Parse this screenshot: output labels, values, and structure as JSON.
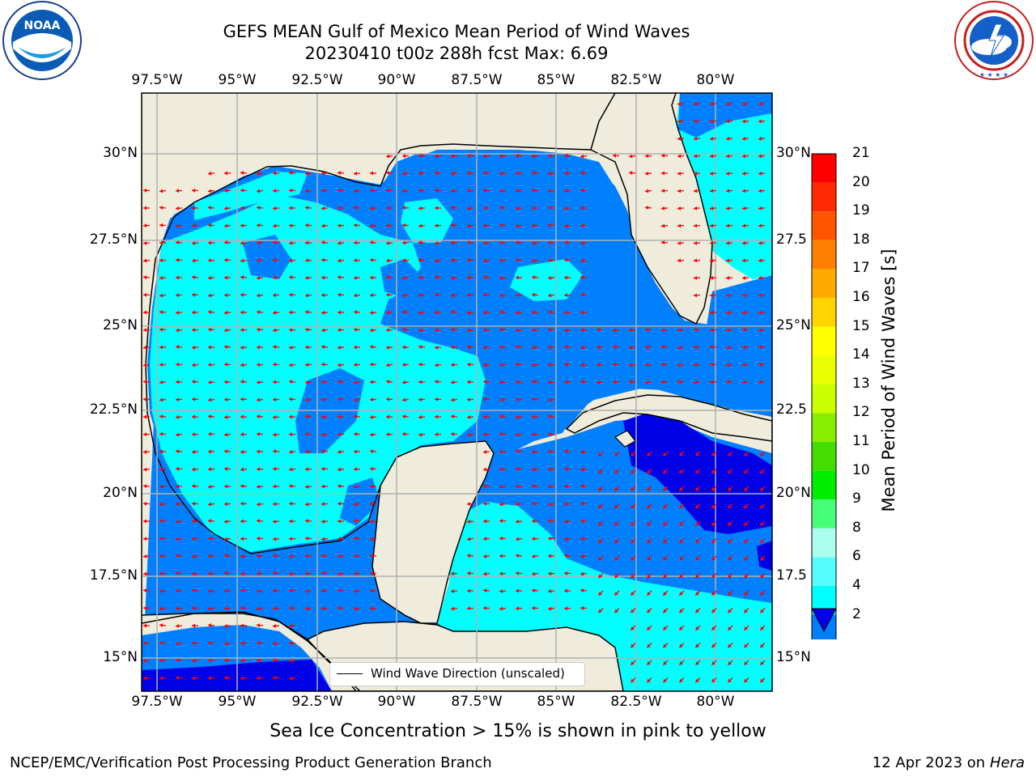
{
  "title": {
    "line1": "GEFS MEAN Gulf of Mexico Mean Period of Wind Waves",
    "line2": "20230410 t00z 288h fcst   Max: 6.69"
  },
  "logos": {
    "left": "NOAA",
    "left_ring": "NATIONAL OCEANIC AND ATMOSPHERIC ADMINISTRATION · U.S. DEPARTMENT OF COMMERCE",
    "right_ring": "NATIONAL WEATHER SERVICE"
  },
  "map": {
    "lon_labels": [
      "97.5°W",
      "95°W",
      "92.5°W",
      "90°W",
      "87.5°W",
      "85°W",
      "82.5°W",
      "80°W"
    ],
    "lat_labels_left": [
      "30°N",
      "27.5°N",
      "25°N",
      "22.5°N",
      "20°N",
      "17.5°N",
      "15°N"
    ],
    "lat_labels_right": [
      "30°N",
      "27.5",
      "25°N",
      "22.5",
      "20°N",
      "17.5",
      "15°N"
    ],
    "legend_label": "Wind Wave Direction (unscaled)",
    "colors": {
      "land": "#efecdc",
      "arrow": "#ff0000",
      "band_2_4": "#0080ff",
      "band_4_6": "#00ffff",
      "band_lt_2": "#0000e6"
    }
  },
  "colorbar": {
    "label": "Mean Period of Wind Waves [s]",
    "ticks": [
      "21",
      "20",
      "19",
      "18",
      "17",
      "16",
      "15",
      "14",
      "13",
      "12",
      "11",
      "10",
      "9",
      "8",
      "6",
      "4",
      "2"
    ],
    "colors": [
      "#ff0000",
      "#ff2a00",
      "#ff5500",
      "#ff8000",
      "#ffaa00",
      "#ffd400",
      "#ffff00",
      "#eaff00",
      "#ccff00",
      "#88ee00",
      "#44dd00",
      "#00ee00",
      "#44ff77",
      "#aaffee",
      "#55ffff",
      "#00ffff",
      "#0080ff"
    ],
    "under_color": "#0000e6"
  },
  "ice_note": "Sea Ice Concentration > 15% is shown in pink to yellow",
  "footer": {
    "left": "NCEP/EMC/Verification Post Processing Product Generation Branch",
    "right_date": "12 Apr 2023 on ",
    "right_machine": "Hera"
  }
}
